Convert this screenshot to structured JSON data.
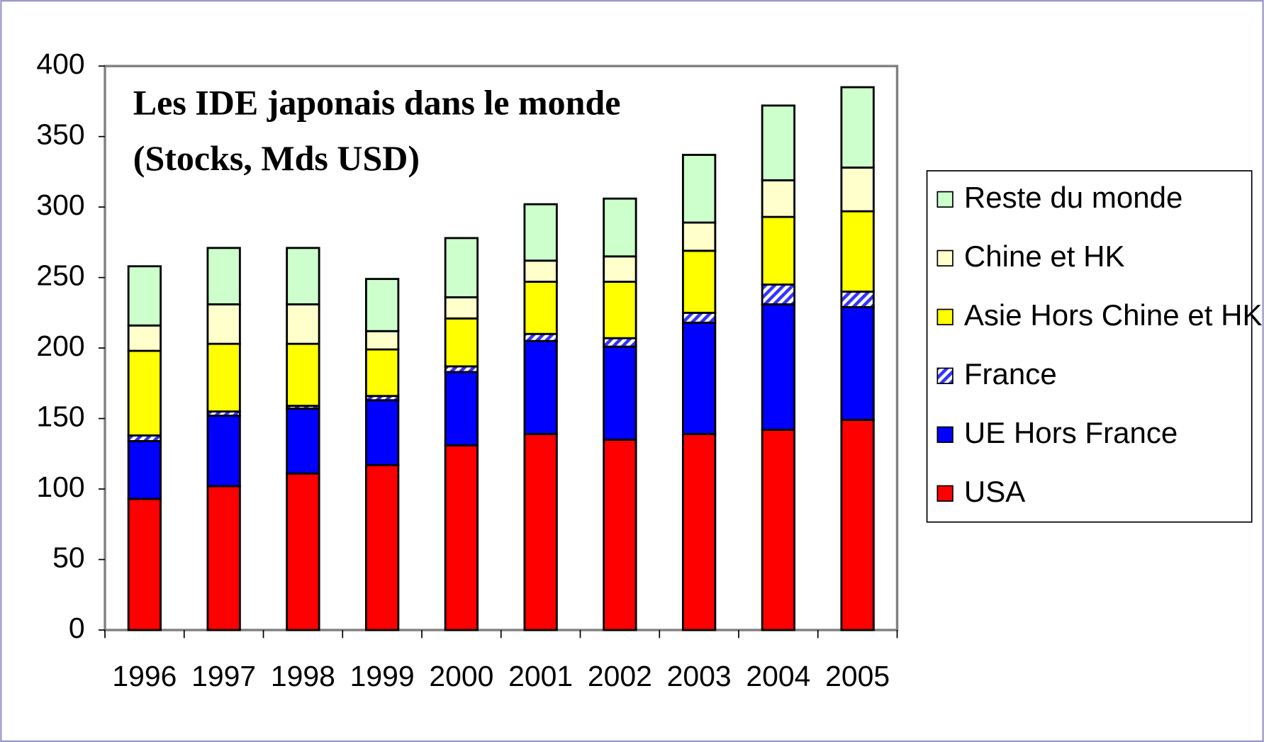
{
  "chart_data": {
    "type": "stacked-bar",
    "title": [
      "Les IDE japonais dans le monde",
      "(Stocks, Mds USD)"
    ],
    "categories": [
      "1996",
      "1997",
      "1998",
      "1999",
      "2000",
      "2001",
      "2002",
      "2003",
      "2004",
      "2005"
    ],
    "series": [
      {
        "name": "USA",
        "color": "#ff0000",
        "values": [
          93,
          102,
          111,
          117,
          131,
          139,
          135,
          139,
          142,
          149
        ]
      },
      {
        "name": "UE Hors France",
        "color": "#0000ff",
        "values": [
          41,
          50,
          46,
          46,
          52,
          66,
          66,
          79,
          89,
          80
        ]
      },
      {
        "name": "France",
        "color": "#3333ff",
        "hatched": true,
        "values": [
          4,
          3,
          2,
          3,
          4,
          5,
          6,
          7,
          14,
          11
        ]
      },
      {
        "name": "Asie Hors Chine et HK",
        "color": "#ffff00",
        "values": [
          60,
          48,
          44,
          33,
          34,
          37,
          40,
          44,
          48,
          57
        ]
      },
      {
        "name": "Chine et HK",
        "color": "#ffffcc",
        "values": [
          18,
          28,
          28,
          13,
          15,
          15,
          18,
          20,
          26,
          31
        ]
      },
      {
        "name": "Reste du monde",
        "color": "#ccffcc",
        "values": [
          42,
          40,
          40,
          37,
          42,
          40,
          41,
          48,
          53,
          57
        ]
      }
    ],
    "ylim": [
      0,
      400
    ],
    "yticks": [
      0,
      50,
      100,
      150,
      200,
      250,
      300,
      350,
      400
    ],
    "grid": false,
    "legend": "right"
  }
}
